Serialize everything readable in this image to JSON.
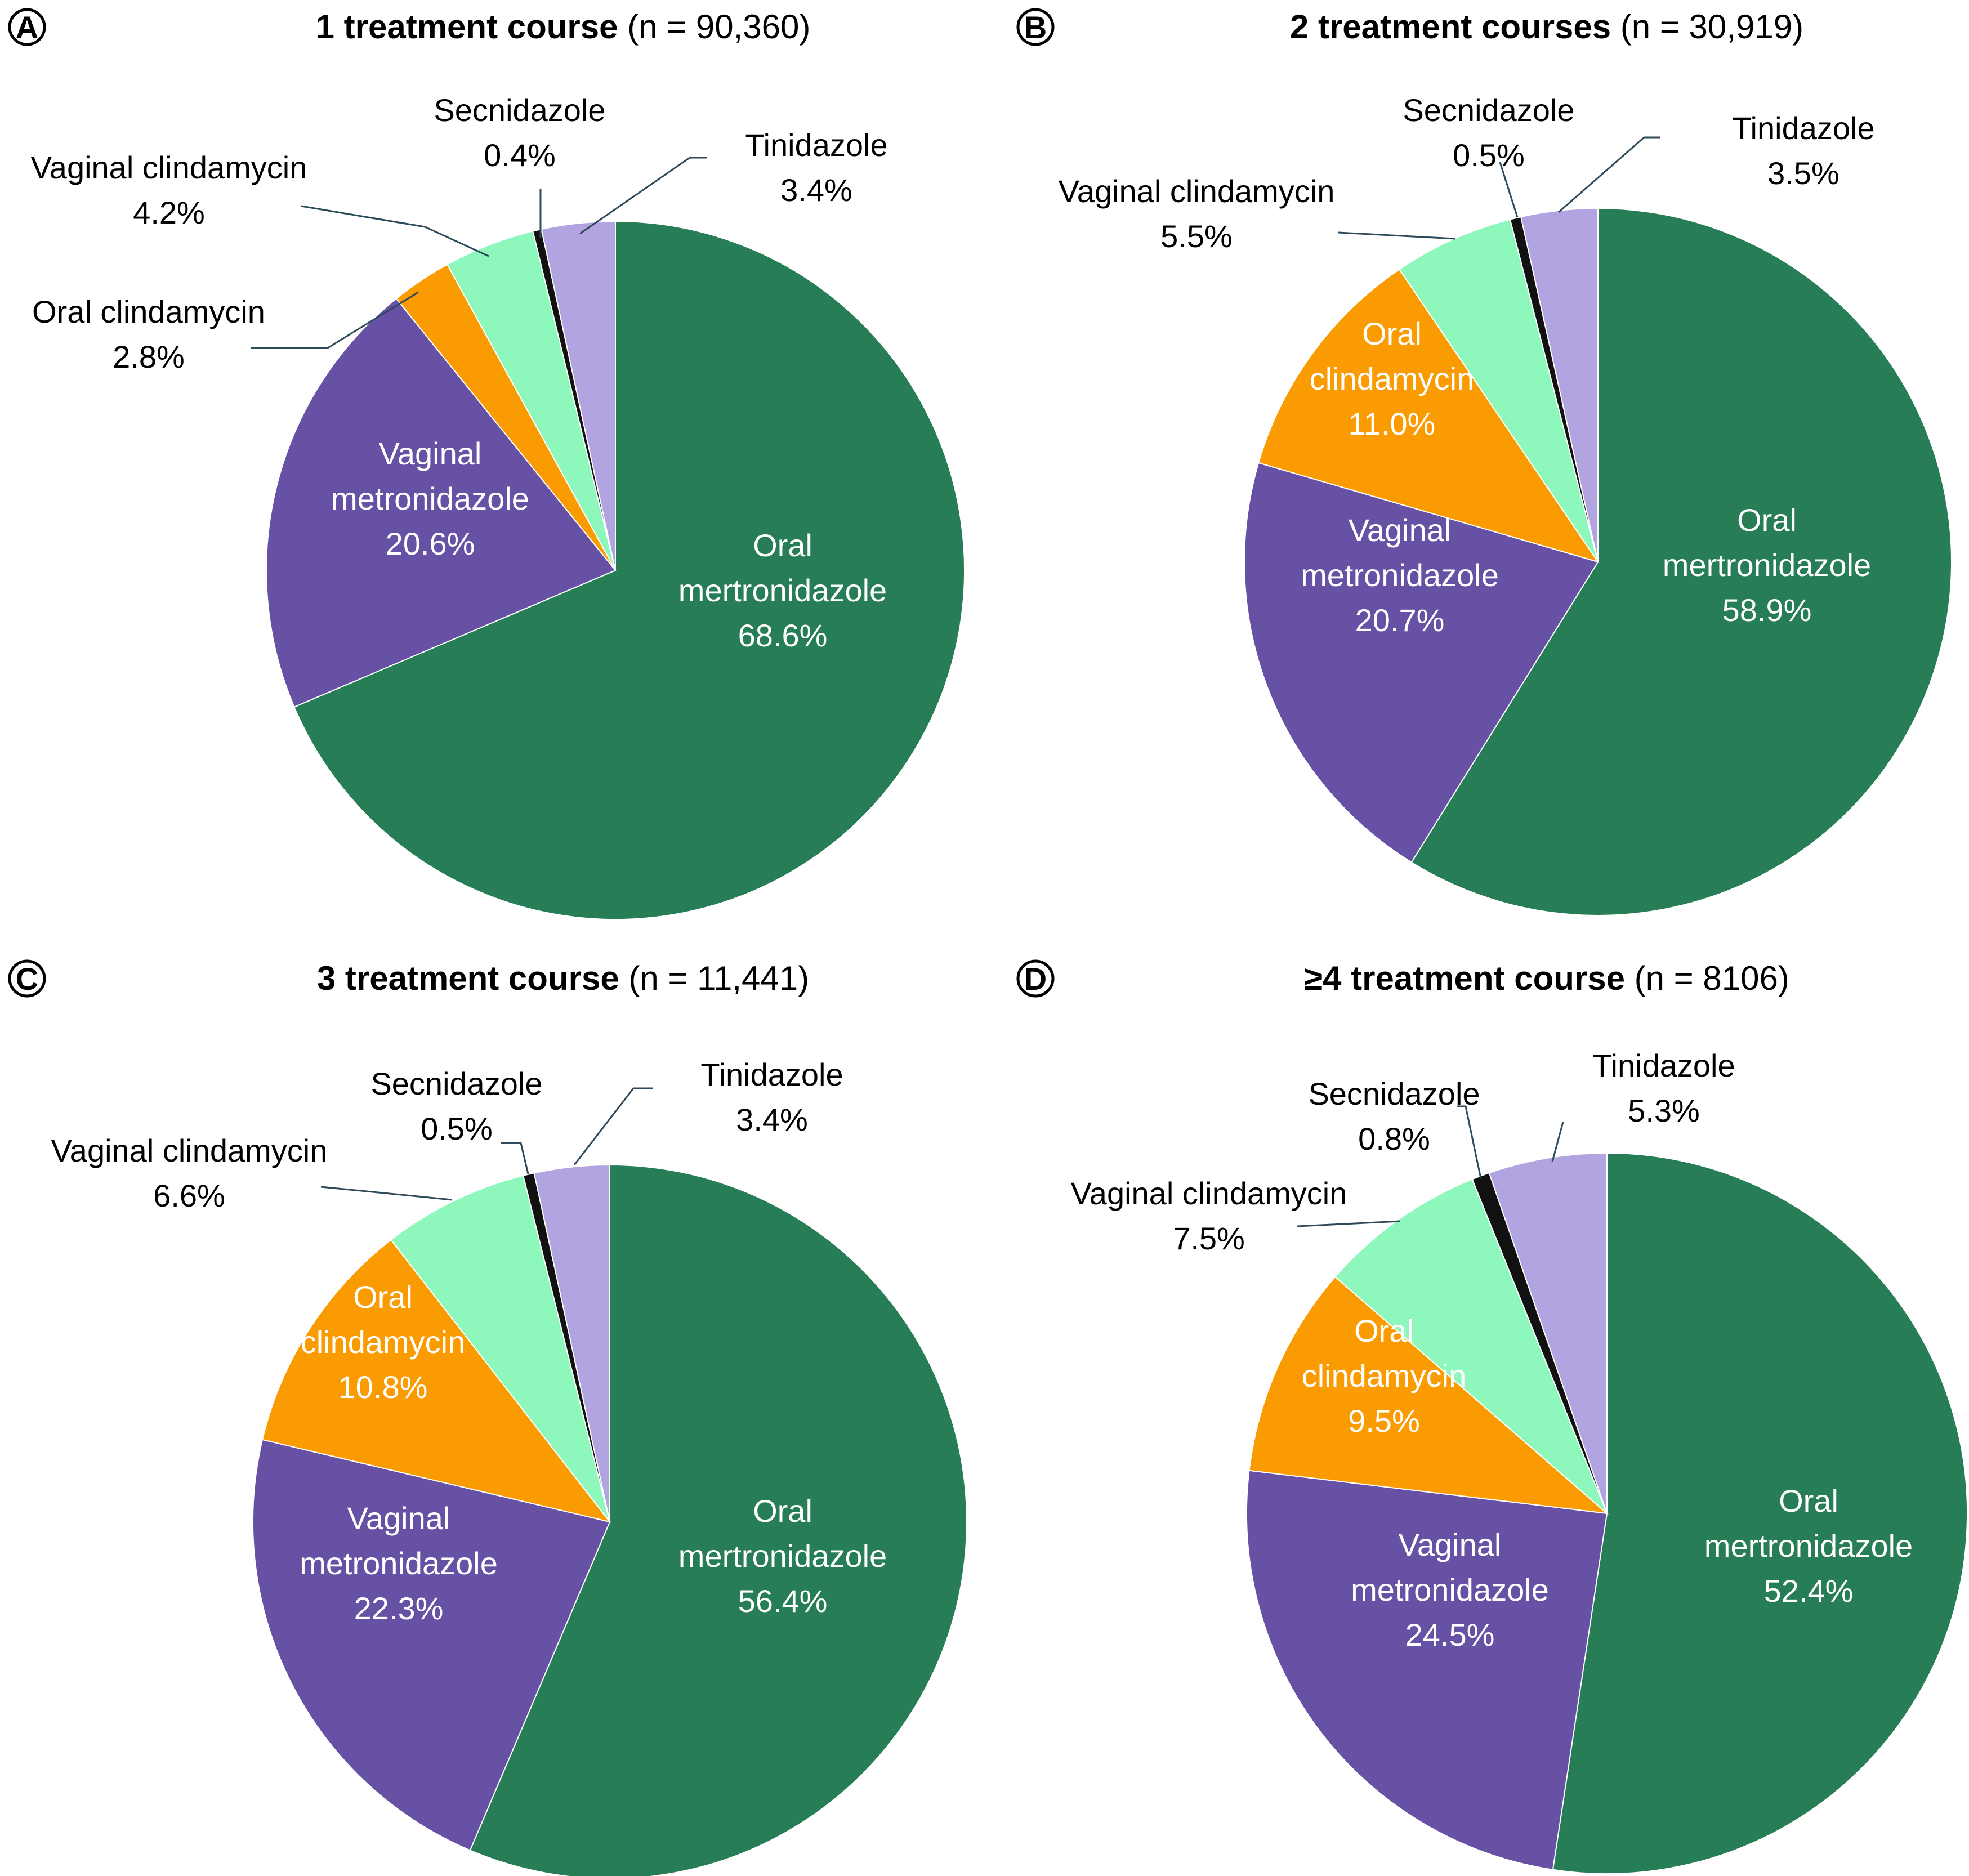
{
  "figure": {
    "colors": {
      "Oral mertronidazole": "#277d55",
      "Vaginal metronidazole": "#6751a5",
      "Oral clindamycin": "#fb9b02",
      "Vaginal clindamycin": "#8ef7bc",
      "Secnidazole": "#111111",
      "Tinidazole": "#b2a4e0"
    },
    "leader_color": "#2e4a5a"
  },
  "chart_data": [
    {
      "type": "pie",
      "panel": "A",
      "title_bold": "1 treatment course",
      "title_rest": " (n = 90,360)",
      "slices": [
        {
          "name": "Tinidazole",
          "label_lines": [
            "Tinidazole"
          ],
          "pct": "3.4%",
          "value": 3.4
        },
        {
          "name": "Oral mertronidazole",
          "label_lines": [
            "Oral",
            "mertronidazole"
          ],
          "pct": "68.6%",
          "value": 68.6
        },
        {
          "name": "Vaginal metronidazole",
          "label_lines": [
            "Vaginal",
            "metronidazole"
          ],
          "pct": "20.6%",
          "value": 20.6
        },
        {
          "name": "Oral clindamycin",
          "label_lines": [
            "Oral clindamycin"
          ],
          "pct": "2.8%",
          "value": 2.8
        },
        {
          "name": "Vaginal clindamycin",
          "label_lines": [
            "Vaginal clindamycin"
          ],
          "pct": "4.2%",
          "value": 4.2
        },
        {
          "name": "Secnidazole",
          "label_lines": [
            "Secnidazole"
          ],
          "pct": "0.4%",
          "value": 0.4
        }
      ]
    },
    {
      "type": "pie",
      "panel": "B",
      "title_bold": "2 treatment courses",
      "title_rest": " (n = 30,919)",
      "slices": [
        {
          "name": "Tinidazole",
          "label_lines": [
            "Tinidazole"
          ],
          "pct": "3.5%",
          "value": 3.5
        },
        {
          "name": "Oral mertronidazole",
          "label_lines": [
            "Oral",
            "mertronidazole"
          ],
          "pct": "58.9%",
          "value": 58.9
        },
        {
          "name": "Vaginal metronidazole",
          "label_lines": [
            "Vaginal",
            "metronidazole"
          ],
          "pct": "20.7%",
          "value": 20.7
        },
        {
          "name": "Oral clindamycin",
          "label_lines": [
            "Oral",
            "clindamycin"
          ],
          "pct": "11.0%",
          "value": 11.0
        },
        {
          "name": "Vaginal clindamycin",
          "label_lines": [
            "Vaginal clindamycin"
          ],
          "pct": "5.5%",
          "value": 5.5
        },
        {
          "name": "Secnidazole",
          "label_lines": [
            "Secnidazole"
          ],
          "pct": "0.5%",
          "value": 0.5
        }
      ]
    },
    {
      "type": "pie",
      "panel": "C",
      "title_bold": "3 treatment course",
      "title_rest": " (n = 11,441)",
      "slices": [
        {
          "name": "Tinidazole",
          "label_lines": [
            "Tinidazole"
          ],
          "pct": "3.4%",
          "value": 3.4
        },
        {
          "name": "Oral mertronidazole",
          "label_lines": [
            "Oral",
            "mertronidazole"
          ],
          "pct": "56.4%",
          "value": 56.4
        },
        {
          "name": "Vaginal metronidazole",
          "label_lines": [
            "Vaginal",
            "metronidazole"
          ],
          "pct": "22.3%",
          "value": 22.3
        },
        {
          "name": "Oral clindamycin",
          "label_lines": [
            "Oral",
            "clindamycin"
          ],
          "pct": "10.8%",
          "value": 10.8
        },
        {
          "name": "Vaginal clindamycin",
          "label_lines": [
            "Vaginal clindamycin"
          ],
          "pct": "6.6%",
          "value": 6.6
        },
        {
          "name": "Secnidazole",
          "label_lines": [
            "Secnidazole"
          ],
          "pct": "0.5%",
          "value": 0.5
        }
      ]
    },
    {
      "type": "pie",
      "panel": "D",
      "title_bold": "≥4 treatment course",
      "title_rest": " (n = 8106)",
      "slices": [
        {
          "name": "Tinidazole",
          "label_lines": [
            "Tinidazole"
          ],
          "pct": "5.3%",
          "value": 5.3
        },
        {
          "name": "Oral mertronidazole",
          "label_lines": [
            "Oral",
            "mertronidazole"
          ],
          "pct": "52.4%",
          "value": 52.4
        },
        {
          "name": "Vaginal metronidazole",
          "label_lines": [
            "Vaginal",
            "metronidazole"
          ],
          "pct": "24.5%",
          "value": 24.5
        },
        {
          "name": "Oral clindamycin",
          "label_lines": [
            "Oral",
            "clindamycin"
          ],
          "pct": "9.5%",
          "value": 9.5
        },
        {
          "name": "Vaginal clindamycin",
          "label_lines": [
            "Vaginal clindamycin"
          ],
          "pct": "7.5%",
          "value": 7.5
        },
        {
          "name": "Secnidazole",
          "label_lines": [
            "Secnidazole"
          ],
          "pct": "0.8%",
          "value": 0.8
        }
      ]
    }
  ]
}
